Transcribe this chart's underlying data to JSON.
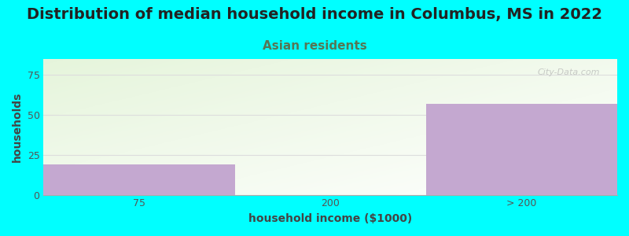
{
  "title": "Distribution of median household income in Columbus, MS in 2022",
  "subtitle": "Asian residents",
  "xlabel": "household income ($1000)",
  "ylabel": "households",
  "categories": [
    "75",
    "200",
    "> 200"
  ],
  "values": [
    19,
    0,
    57
  ],
  "bar_color": "#C4A8D0",
  "background_color": "#00FFFF",
  "ylim": [
    0,
    85
  ],
  "yticks": [
    0,
    25,
    50,
    75
  ],
  "title_fontsize": 14,
  "title_color": "#222222",
  "subtitle_fontsize": 11,
  "subtitle_color": "#557755",
  "axis_label_fontsize": 10,
  "axis_label_color": "#444444",
  "tick_fontsize": 9,
  "tick_color": "#555555",
  "watermark": "City-Data.com",
  "grid_color": "#dddddd",
  "plot_bg_green": [
    0.9,
    0.96,
    0.86
  ],
  "plot_bg_white": [
    1.0,
    1.0,
    1.0
  ]
}
